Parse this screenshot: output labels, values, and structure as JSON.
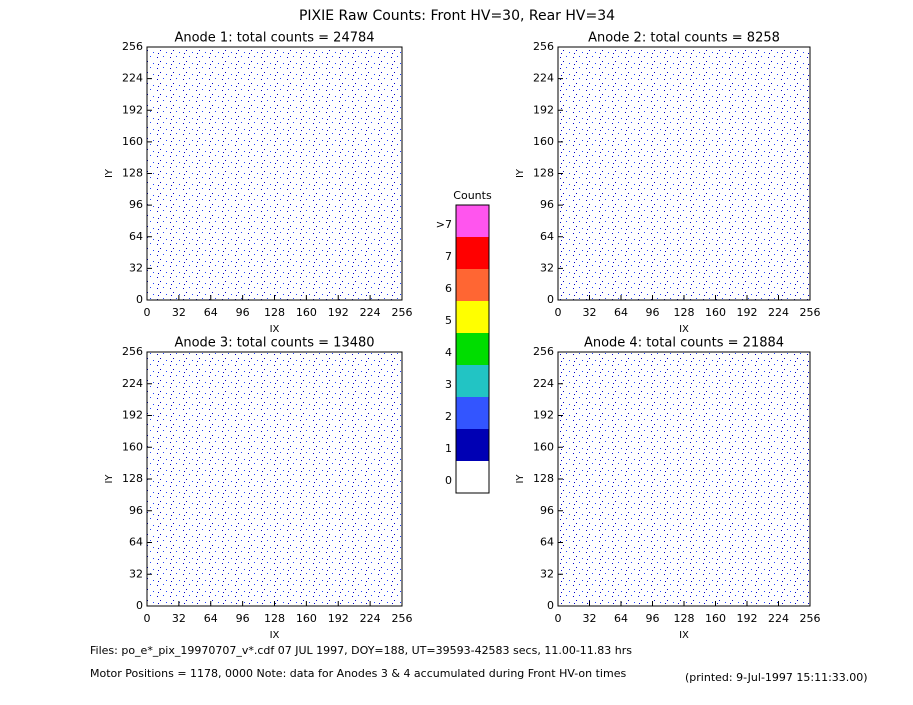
{
  "title": "PIXIE Raw Counts:  Front HV=30, Rear HV=34",
  "chart_data": [
    {
      "type": "heatmap",
      "title": "Anode 1: total counts = 24784",
      "x_label": "IX",
      "y_label": "IY",
      "xlim": [
        0,
        256
      ],
      "ylim": [
        0,
        256
      ],
      "xticks": [
        0,
        32,
        64,
        96,
        128,
        160,
        192,
        224,
        256
      ],
      "yticks": [
        0,
        32,
        64,
        96,
        128,
        160,
        192,
        224,
        256
      ]
    },
    {
      "type": "heatmap",
      "title": "Anode 2: total counts = 8258",
      "x_label": "IX",
      "y_label": "IY",
      "xlim": [
        0,
        256
      ],
      "ylim": [
        0,
        256
      ],
      "xticks": [
        0,
        32,
        64,
        96,
        128,
        160,
        192,
        224,
        256
      ],
      "yticks": [
        0,
        32,
        64,
        96,
        128,
        160,
        192,
        224,
        256
      ]
    },
    {
      "type": "heatmap",
      "title": "Anode 3: total counts = 13480",
      "x_label": "IX",
      "y_label": "IY",
      "xlim": [
        0,
        256
      ],
      "ylim": [
        0,
        256
      ],
      "xticks": [
        0,
        32,
        64,
        96,
        128,
        160,
        192,
        224,
        256
      ],
      "yticks": [
        0,
        32,
        64,
        96,
        128,
        160,
        192,
        224,
        256
      ]
    },
    {
      "type": "heatmap",
      "title": "Anode 4: total counts = 21884",
      "x_label": "IX",
      "y_label": "IY",
      "xlim": [
        0,
        256
      ],
      "ylim": [
        0,
        256
      ],
      "xticks": [
        0,
        32,
        64,
        96,
        128,
        160,
        192,
        224,
        256
      ],
      "yticks": [
        0,
        32,
        64,
        96,
        128,
        160,
        192,
        224,
        256
      ]
    },
    {
      "type": "colorbar",
      "title": "Counts",
      "categories": [
        "0",
        "1",
        "2",
        "3",
        "4",
        "5",
        "6",
        "7",
        ">7"
      ],
      "colors": [
        "#ffffff",
        "#0000b4",
        "#3355ff",
        "#22c4c4",
        "#00dd00",
        "#ffff00",
        "#ff6633",
        "#ff0000",
        "#ff55ee"
      ]
    }
  ],
  "footer": {
    "files": "Files: po_e*_pix_19970707_v*.cdf    07 JUL 1997, DOY=188, UT=39593-42583 secs, 11.00-11.83 hrs",
    "motor": "Motor Positions = 1178, 0000   Note: data for Anodes 3 & 4 accumulated during Front HV-on times",
    "printed": "(printed:  9-Jul-1997 15:11:33.00)"
  }
}
